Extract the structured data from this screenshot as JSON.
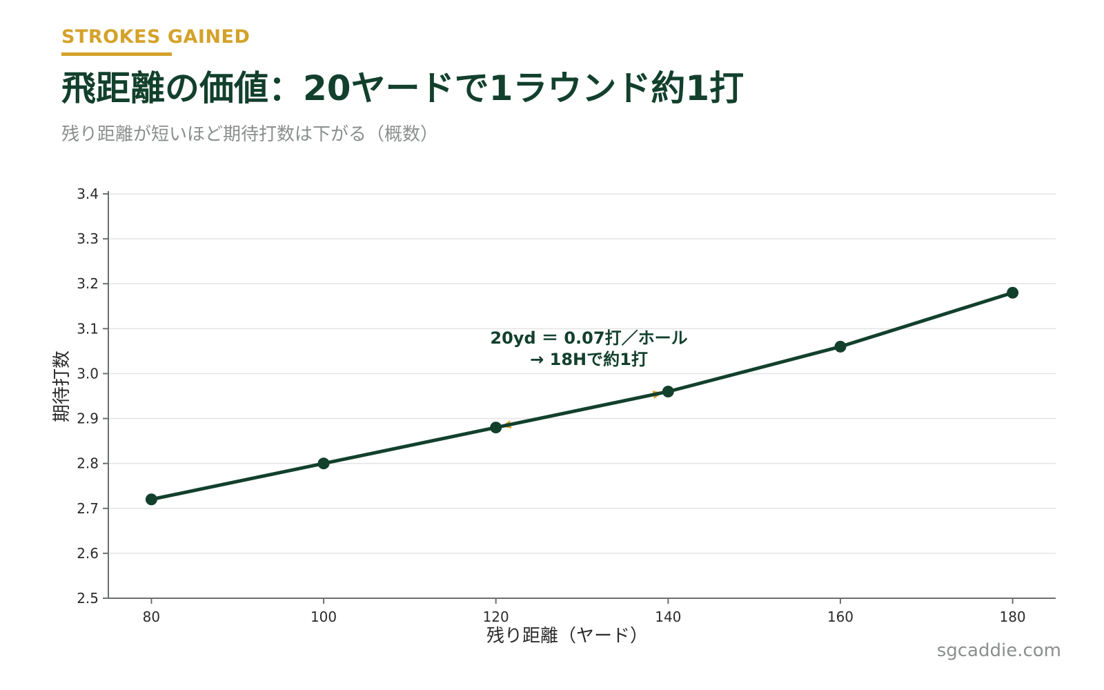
{
  "header": {
    "kicker": "STROKES GAINED",
    "title": "飛距離の価値：20ヤードで1ラウンド約1打",
    "subtitle": "残り距離が短いほど期待打数は下がる（概数）"
  },
  "footer": {
    "site": "sgcaddie.com"
  },
  "colors": {
    "line": "#12402d",
    "accent": "#d4a22a",
    "grid": "#e3e3e3",
    "axis": "#6b6f6c"
  },
  "chart_data": {
    "type": "line",
    "title": "飛距離の価値：20ヤードで1ラウンド約1打",
    "xlabel": "残り距離（ヤード）",
    "ylabel": "期待打数",
    "xlim": [
      75,
      185
    ],
    "ylim": [
      2.5,
      3.4
    ],
    "xticks": [
      80,
      100,
      120,
      140,
      160,
      180
    ],
    "yticks": [
      2.5,
      2.6,
      2.7,
      2.8,
      2.9,
      3.0,
      3.1,
      3.2,
      3.3,
      3.4
    ],
    "grid": true,
    "x": [
      80,
      100,
      120,
      140,
      160,
      180
    ],
    "y": [
      2.72,
      2.8,
      2.88,
      2.96,
      3.06,
      3.18
    ],
    "annotation": {
      "line1": "20yd ＝ 0.07打／ホール",
      "line2": "→ 18Hで約1打",
      "from_x": 140,
      "from_y": 2.96,
      "to_x": 120,
      "to_y": 2.88
    }
  }
}
